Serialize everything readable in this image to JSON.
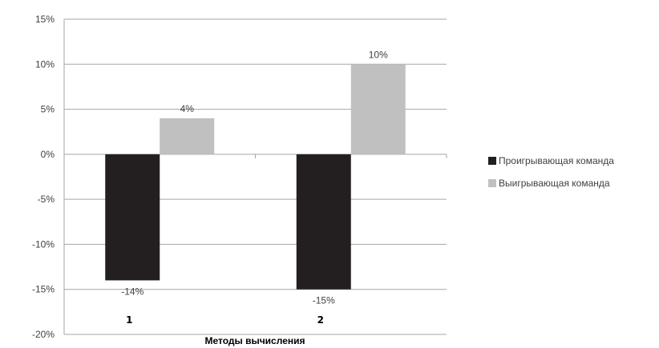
{
  "chart_data": {
    "type": "bar",
    "categories": [
      "1",
      "2"
    ],
    "series": [
      {
        "name": "Проигрывающая команда",
        "values": [
          -14,
          -15
        ],
        "color": "#231f20"
      },
      {
        "name": "Выигрывающая команда",
        "values": [
          4,
          10
        ],
        "color": "#c0c0c0"
      }
    ],
    "data_labels": [
      [
        "-14%",
        "-15%"
      ],
      [
        "4%",
        "10%"
      ]
    ],
    "ylim": [
      -20,
      15
    ],
    "yticks": [
      15,
      10,
      5,
      0,
      -5,
      -10,
      -15,
      -20
    ],
    "ytick_labels": [
      "15%",
      "10%",
      "5%",
      "0%",
      "-5%",
      "-10%",
      "-15%",
      "-20%"
    ],
    "xlabel": "Методы вычисления",
    "ylabel": "",
    "title": "",
    "grid": "horizontal",
    "legend_position": "right"
  }
}
